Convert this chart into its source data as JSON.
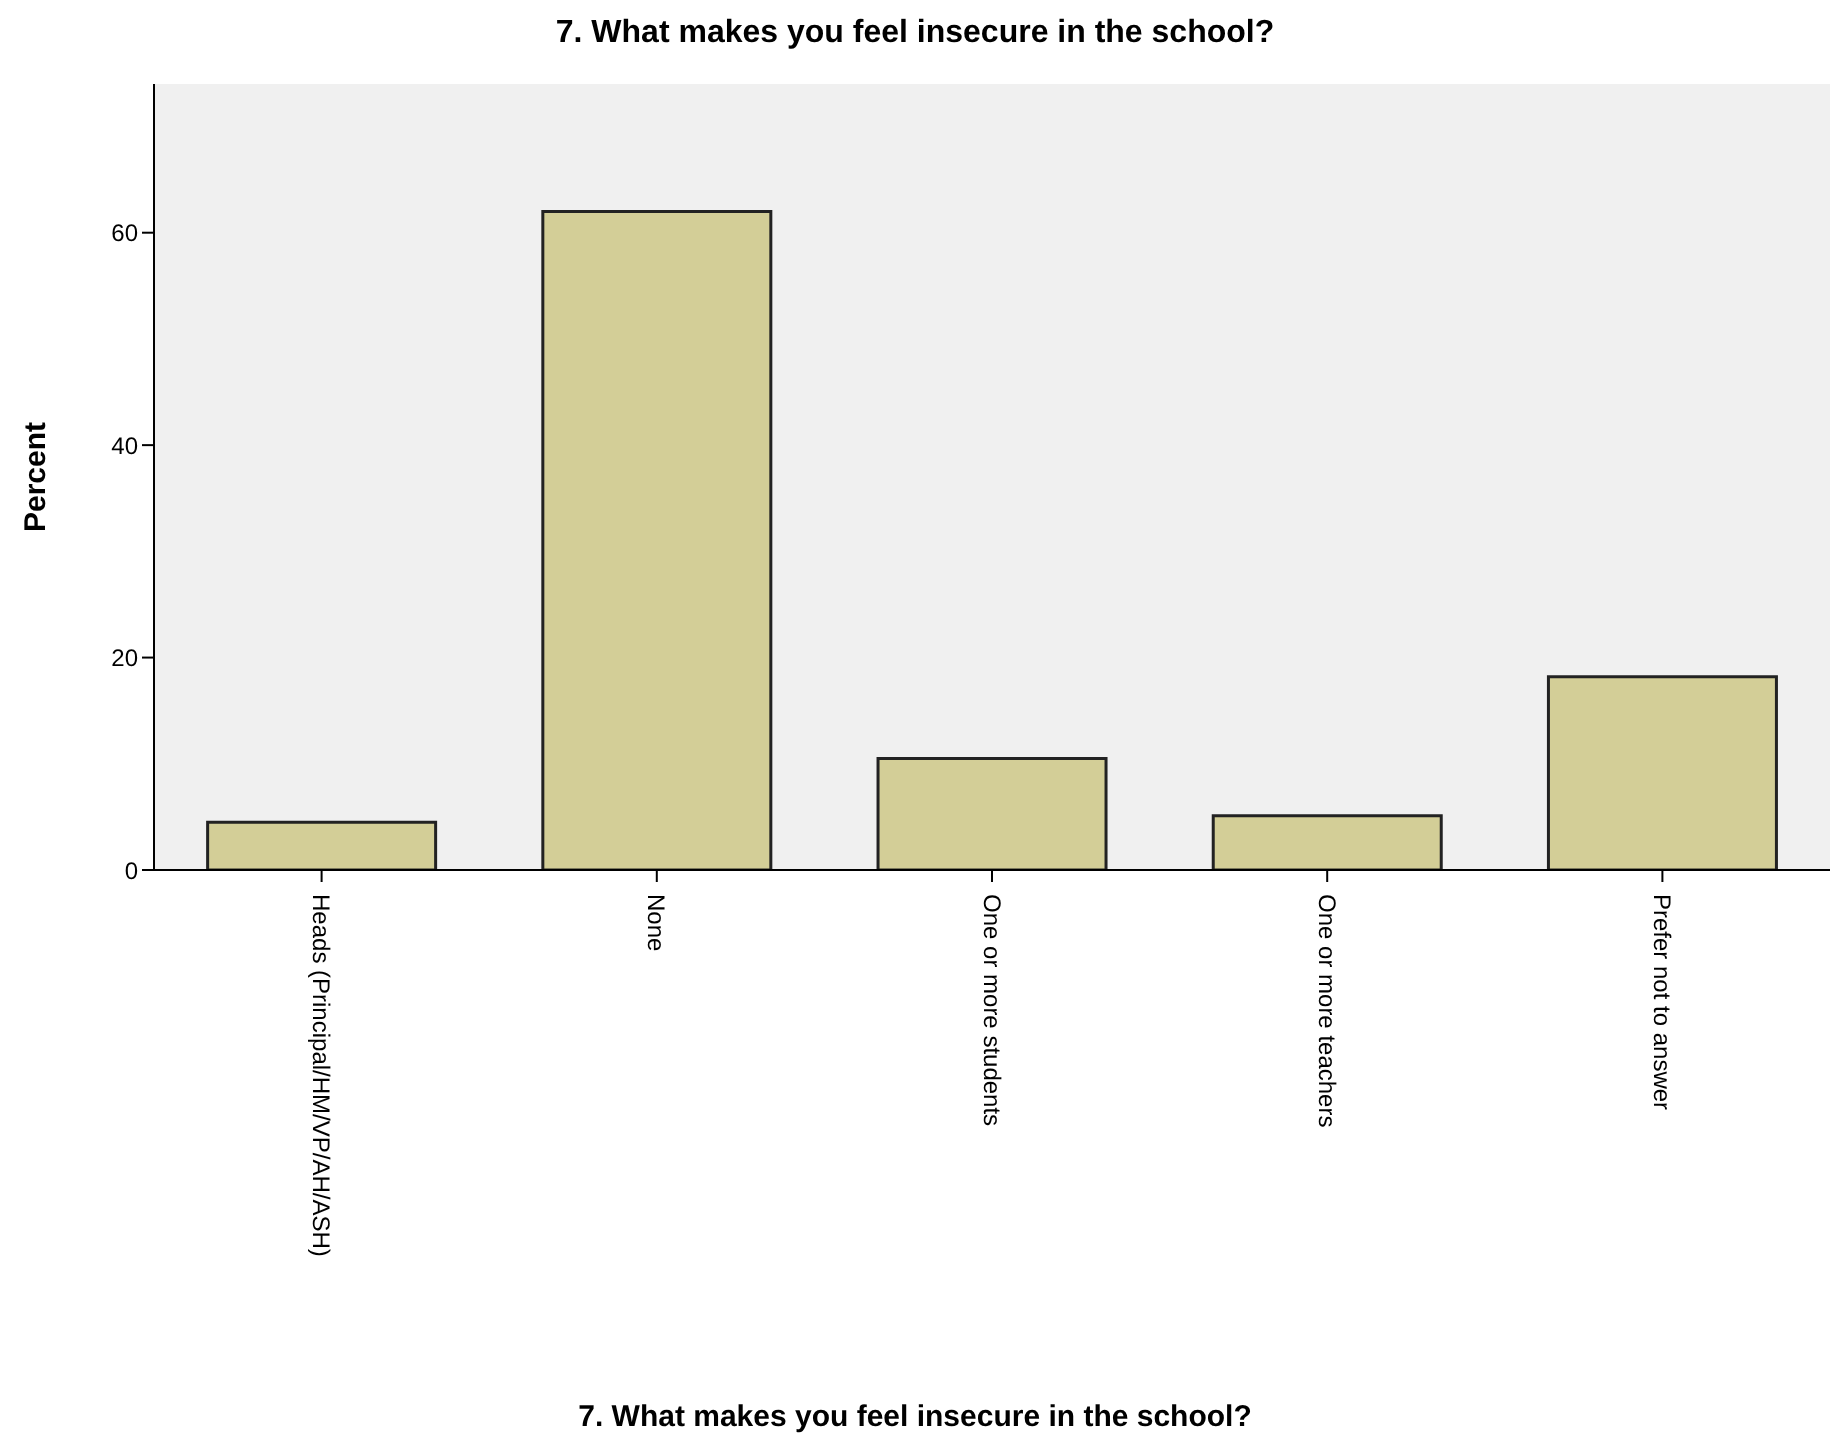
{
  "chart_data": {
    "type": "bar",
    "title": "7. What makes you feel insecure in the school?",
    "xlabel": "7. What makes you feel insecure in the school?",
    "ylabel": "Percent",
    "categories": [
      "Heads (Principal/HM/VP/AH/ASH)",
      "None",
      "One or more students",
      "One or more teachers",
      "Prefer not to answer"
    ],
    "values": [
      4.5,
      62,
      10.5,
      5.1,
      18.2
    ],
    "color": "#d3ce97",
    "ylim": [
      0,
      74
    ],
    "yticks": [
      0,
      20,
      40,
      60
    ],
    "grid": false
  }
}
